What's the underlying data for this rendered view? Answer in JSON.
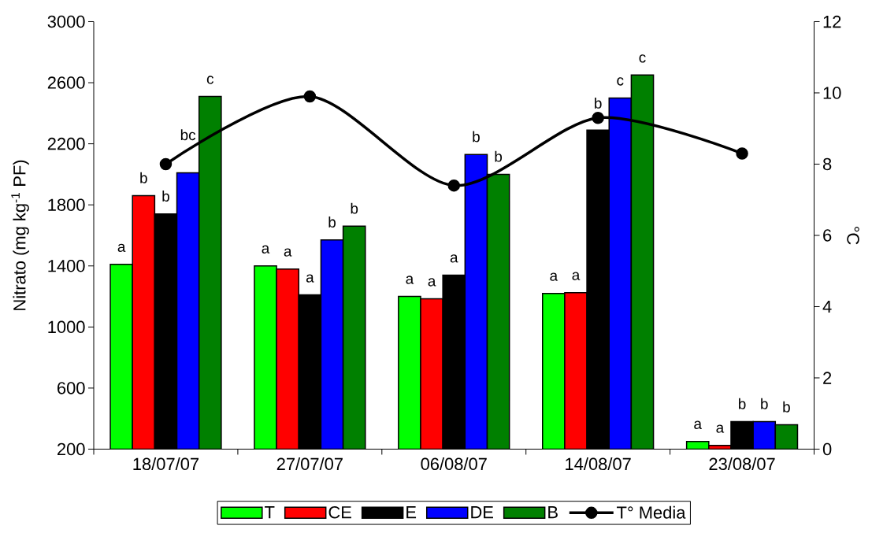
{
  "chart_data": {
    "type": "bar",
    "categories": [
      "18/07/07",
      "27/07/07",
      "06/08/07",
      "14/08/07",
      "23/08/07"
    ],
    "ylabel": "Nitrato (mg kg$^{-1}$ PF)",
    "y2label": "°C",
    "ylim": [
      200,
      3000
    ],
    "yticks": [
      200,
      600,
      1000,
      1400,
      1800,
      2200,
      2600,
      3000
    ],
    "y2lim": [
      0,
      12
    ],
    "y2ticks": [
      0,
      2,
      4,
      6,
      8,
      10,
      12
    ],
    "legend": "bottom",
    "series": [
      {
        "name": "T",
        "color": "#00ff00",
        "values": [
          1410,
          1400,
          1200,
          1220,
          250
        ],
        "value_labels": [
          "a",
          "a",
          "a",
          "a",
          "a"
        ]
      },
      {
        "name": "CE",
        "color": "#ff0000",
        "values": [
          1860,
          1380,
          1185,
          1225,
          225
        ],
        "value_labels": [
          "b",
          "a",
          "a",
          "a",
          "a"
        ]
      },
      {
        "name": "E",
        "color": "#000000",
        "values": [
          1740,
          1210,
          1340,
          2290,
          380
        ],
        "value_labels": [
          "b",
          "a",
          "a",
          "b",
          "b"
        ]
      },
      {
        "name": "DE",
        "color": "#0000ff",
        "values": [
          2010,
          1570,
          2130,
          2500,
          380
        ],
        "value_labels": [
          "bc",
          "b",
          "b",
          "c",
          "b"
        ]
      },
      {
        "name": "B",
        "color": "#008000",
        "values": [
          2510,
          1660,
          2000,
          2650,
          360
        ],
        "value_labels": [
          "c",
          "b",
          "b",
          "c",
          "b"
        ]
      },
      {
        "name": "T° Media",
        "type": "line",
        "axis": "y2",
        "color": "#000000",
        "marker": "circle",
        "line_style": "solid",
        "values": [
          8.0,
          9.9,
          7.4,
          9.3,
          8.3
        ]
      }
    ]
  }
}
